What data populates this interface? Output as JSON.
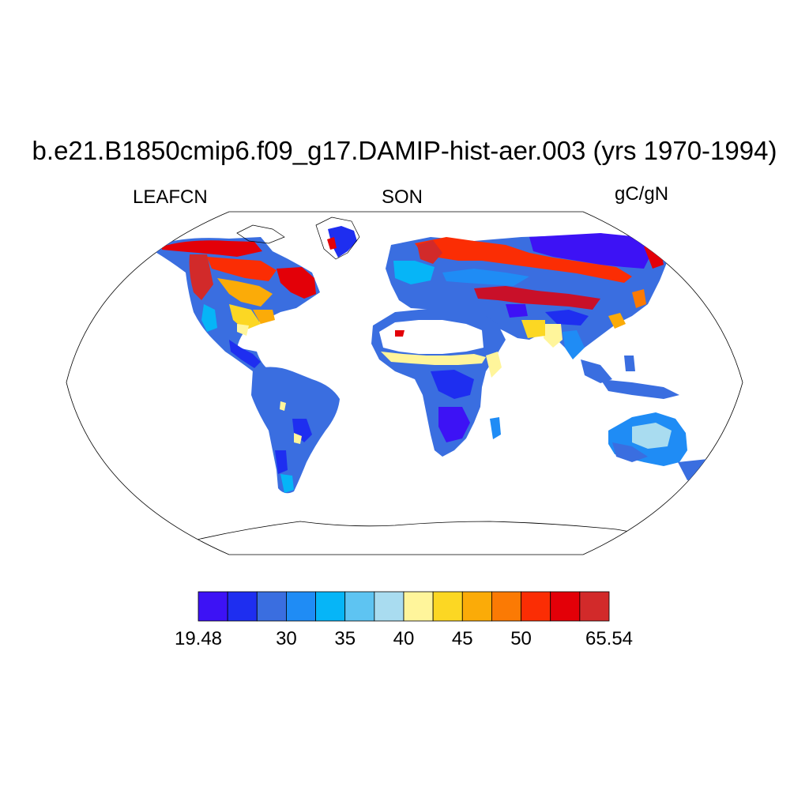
{
  "title": "b.e21.B1850cmip6.f09_g17.DAMIP-hist-aer.003 (yrs 1970-1994)",
  "left_label": "LEAFCN",
  "center_label": "SON",
  "right_label": "gC/gN",
  "colorbar": {
    "colors": [
      "#3d12f5",
      "#1e2ef0",
      "#3a6ee0",
      "#1f8cf5",
      "#06b5f7",
      "#5ec4f2",
      "#a9dcf0",
      "#fff59b",
      "#fcd723",
      "#fbab08",
      "#fb7a04",
      "#fb2d04",
      "#e30008",
      "#d22a2a"
    ],
    "labels": [
      "19.48",
      "30",
      "35",
      "40",
      "45",
      "50",
      "65.54"
    ],
    "label_bins": [
      0,
      3,
      5,
      7,
      9,
      11,
      14
    ]
  },
  "map_data": {
    "projection": "Robinson",
    "field": "LEAFCN",
    "season": "SON",
    "units": "gC/gN",
    "min": 19.48,
    "max": 65.54
  }
}
